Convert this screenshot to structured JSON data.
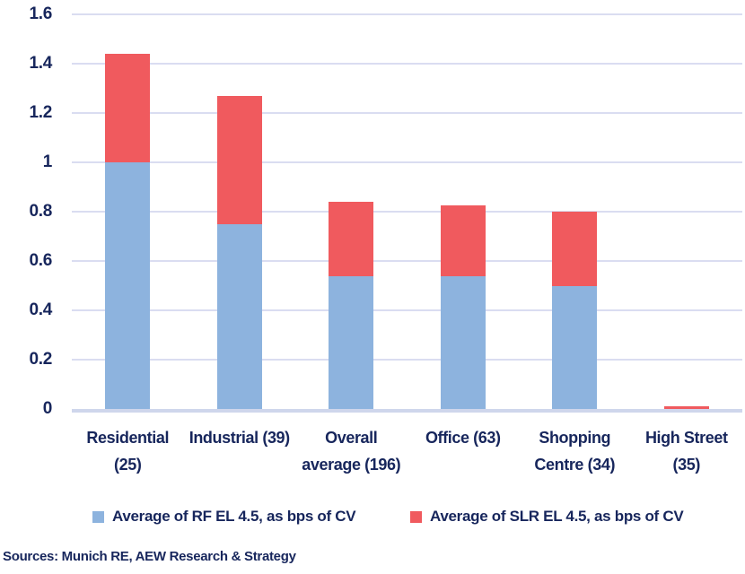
{
  "chart_data": {
    "type": "bar",
    "stacked": true,
    "title": "",
    "xlabel": "",
    "ylabel": "",
    "categories": [
      "Residential (25)",
      "Industrial (39)",
      "Overall average (196)",
      "Office (63)",
      "Shopping Centre (34)",
      "High Street (35)"
    ],
    "category_lines": [
      [
        "Residential",
        "(25)"
      ],
      [
        "Industrial (39)"
      ],
      [
        "Overall",
        "average (196)"
      ],
      [
        "Office (63)"
      ],
      [
        "Shopping",
        "Centre (34)"
      ],
      [
        "High Street",
        "(35)"
      ]
    ],
    "series": [
      {
        "key": "rf",
        "name": "Average of RF EL 4.5, as bps of CV",
        "color": "#8DB3DE",
        "values": [
          1.0,
          0.75,
          0.54,
          0.54,
          0.5,
          0.0
        ]
      },
      {
        "key": "slr",
        "name": "Average of SLR EL 4.5, as bps of CV",
        "color": "#F05A5E",
        "values": [
          0.44,
          0.52,
          0.3,
          0.285,
          0.3,
          0.01
        ]
      }
    ],
    "totals": [
      1.44,
      1.27,
      0.84,
      0.825,
      0.8,
      0.01
    ],
    "ylim": [
      0,
      1.6
    ],
    "yticks": [
      0,
      0.2,
      0.4,
      0.6,
      0.8,
      1,
      1.2,
      1.4,
      1.6
    ],
    "ytick_labels": [
      "0",
      "0.2",
      "0.4",
      "0.6",
      "0.8",
      "1",
      "1.2",
      "1.4",
      "1.6"
    ],
    "grid": true,
    "legend_position": "bottom"
  },
  "colors": {
    "axis_text": "#17265C",
    "gridline": "#DADDF1",
    "zero_line": "#CFD6EC",
    "rf_blue": "#8DB3DE",
    "slr_red": "#F05A5E"
  },
  "footer": {
    "sources": "Sources: Munich RE, AEW Research & Strategy"
  }
}
